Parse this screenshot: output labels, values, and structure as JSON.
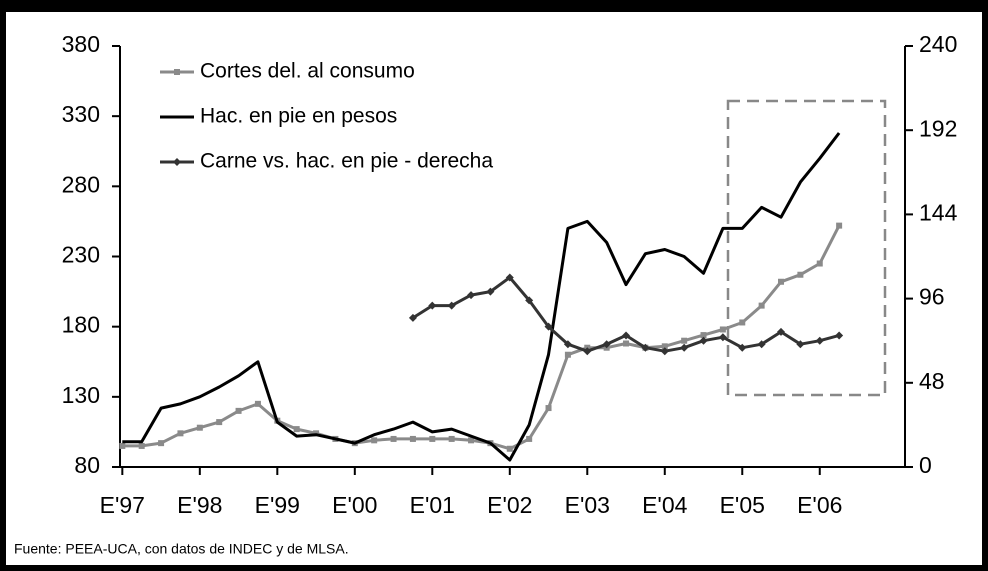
{
  "chart_data": {
    "type": "line",
    "source": "Fuente: PEEA-UCA, con datos de INDEC y de MLSA.",
    "x": [
      1997,
      1997.25,
      1997.5,
      1997.75,
      1998,
      1998.25,
      1998.5,
      1998.75,
      1999,
      1999.25,
      1999.5,
      1999.75,
      2000,
      2000.25,
      2000.5,
      2000.75,
      2001,
      2001.25,
      2001.5,
      2001.75,
      2002,
      2002.25,
      2002.5,
      2002.75,
      2003,
      2003.25,
      2003.5,
      2003.75,
      2004,
      2004.25,
      2004.5,
      2004.75,
      2005,
      2005.25,
      2005.5,
      2005.75,
      2006,
      2006.25
    ],
    "series": [
      {
        "name": "Cortes del. al consumo",
        "color": "#8a8a8a",
        "marker": "square",
        "values": [
          95,
          95,
          97,
          104,
          108,
          112,
          120,
          125,
          113,
          107,
          104,
          100,
          97,
          99,
          100,
          100,
          100,
          100,
          99,
          97,
          93,
          100,
          122,
          160,
          165,
          165,
          168,
          165,
          166,
          170,
          174,
          178,
          183,
          195,
          212,
          217,
          225,
          252
        ]
      },
      {
        "name": "Hac. en pie en pesos",
        "color": "#000000",
        "marker": "none",
        "values": [
          98,
          98,
          122,
          125,
          130,
          137,
          145,
          155,
          112,
          102,
          103,
          100,
          97,
          103,
          107,
          112,
          105,
          107,
          102,
          97,
          85,
          110,
          160,
          250,
          255,
          240,
          210,
          232,
          235,
          230,
          218,
          250,
          250,
          265,
          258,
          283,
          300,
          318
        ]
      },
      {
        "name": "Carne vs. hac. en pie - derecha",
        "color": "#333333",
        "marker": "diamond",
        "axis": "y2",
        "values": [
          null,
          null,
          null,
          null,
          null,
          null,
          null,
          null,
          null,
          null,
          null,
          null,
          null,
          null,
          null,
          85,
          92,
          92,
          98,
          100,
          108,
          95,
          80,
          70,
          66,
          70,
          75,
          68,
          66,
          68,
          72,
          74,
          68,
          70,
          77,
          70,
          72,
          75
        ]
      }
    ],
    "xlim": [
      1996.97,
      2007.1
    ],
    "xticks": [
      {
        "value": 1997,
        "label": "E'97"
      },
      {
        "value": 1998,
        "label": "E'98"
      },
      {
        "value": 1999,
        "label": "E'99"
      },
      {
        "value": 2000,
        "label": "E'00"
      },
      {
        "value": 2001,
        "label": "E'01"
      },
      {
        "value": 2002,
        "label": "E'02"
      },
      {
        "value": 2003,
        "label": "E'03"
      },
      {
        "value": 2004,
        "label": "E'04"
      },
      {
        "value": 2005,
        "label": "E'05"
      },
      {
        "value": 2006,
        "label": "E'06"
      }
    ],
    "ylim": [
      80,
      380
    ],
    "yticks": [
      80,
      130,
      180,
      230,
      280,
      330,
      380
    ],
    "y2lim": [
      0,
      240
    ],
    "y2ticks": [
      0,
      48,
      96,
      144,
      192,
      240
    ],
    "legend": "upper left"
  }
}
